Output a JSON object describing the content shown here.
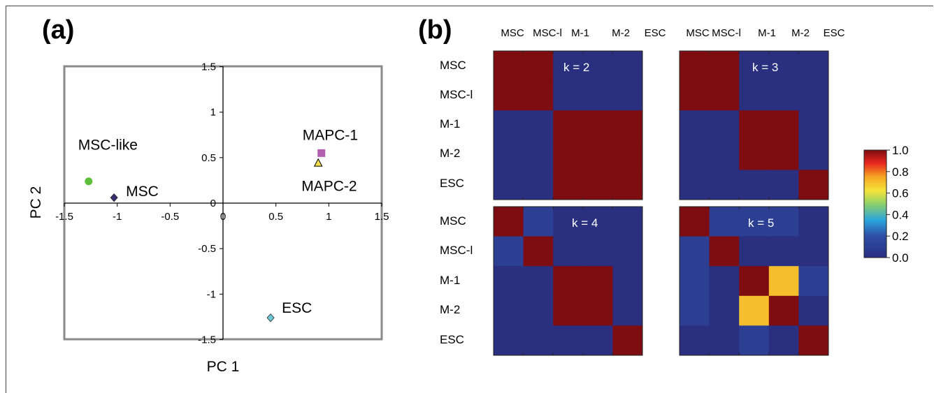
{
  "panels": {
    "a": {
      "label": "(a)"
    },
    "b": {
      "label": "(b)"
    }
  },
  "chart_data": [
    {
      "type": "scatter",
      "title": "",
      "xlabel": "PC 1",
      "ylabel": "PC 2",
      "xlim": [
        -1.5,
        1.5
      ],
      "ylim": [
        -1.5,
        1.5
      ],
      "xticks": [
        "-1.5",
        "-1",
        "-0.5",
        "0",
        "0.5",
        "1",
        "1.5"
      ],
      "yticks": [
        "1.5",
        "1",
        "0.5",
        "0",
        "-0.5",
        "-1",
        "-1.5"
      ],
      "points": [
        {
          "label": "MSC-like",
          "x": -1.27,
          "y": 0.24,
          "marker": "circle",
          "color": "#5cbf3a"
        },
        {
          "label": "MSC",
          "x": -1.03,
          "y": 0.06,
          "marker": "diamond",
          "color": "#3a2f73"
        },
        {
          "label": "MAPC-1",
          "x": 0.93,
          "y": 0.55,
          "marker": "square",
          "color": "#b25fb0"
        },
        {
          "label": "MAPC-2",
          "x": 0.9,
          "y": 0.44,
          "marker": "triangle",
          "color": "#f4e04a"
        },
        {
          "label": "ESC",
          "x": 0.45,
          "y": -1.26,
          "marker": "diamond",
          "color": "#6cc9d8"
        }
      ]
    },
    {
      "type": "heatmap",
      "labels": [
        "MSC",
        "MSC-l",
        "M-1",
        "M-2",
        "ESC"
      ],
      "colorbar": {
        "min": 0.0,
        "max": 1.0,
        "ticks": [
          "1.0",
          "0.8",
          "0.6",
          "0.4",
          "0.2",
          "0.0"
        ]
      },
      "matrices": [
        {
          "title": "k = 2",
          "values": [
            [
              1,
              1,
              0,
              0,
              0
            ],
            [
              1,
              1,
              0,
              0,
              0
            ],
            [
              0,
              0,
              1,
              1,
              1
            ],
            [
              0,
              0,
              1,
              1,
              1
            ],
            [
              0,
              0,
              1,
              1,
              1
            ]
          ]
        },
        {
          "title": "k = 3",
          "values": [
            [
              1,
              1,
              0,
              0,
              0
            ],
            [
              1,
              1,
              0,
              0,
              0
            ],
            [
              0,
              0,
              1,
              1,
              0
            ],
            [
              0,
              0,
              1,
              1,
              0
            ],
            [
              0,
              0,
              0,
              0,
              1
            ]
          ]
        },
        {
          "title": "k = 4",
          "values": [
            [
              1,
              0.1,
              0,
              0,
              0
            ],
            [
              0.1,
              1,
              0,
              0,
              0
            ],
            [
              0,
              0,
              1,
              1,
              0
            ],
            [
              0,
              0,
              1,
              1,
              0
            ],
            [
              0,
              0,
              0,
              0,
              1
            ]
          ]
        },
        {
          "title": "k = 5",
          "values": [
            [
              1,
              0.1,
              0.1,
              0.1,
              0
            ],
            [
              0.1,
              1,
              0,
              0,
              0
            ],
            [
              0.1,
              0,
              1,
              0.7,
              0.1
            ],
            [
              0.1,
              0,
              0.7,
              1,
              0
            ],
            [
              0,
              0,
              0.1,
              0,
              1
            ]
          ]
        }
      ]
    }
  ]
}
